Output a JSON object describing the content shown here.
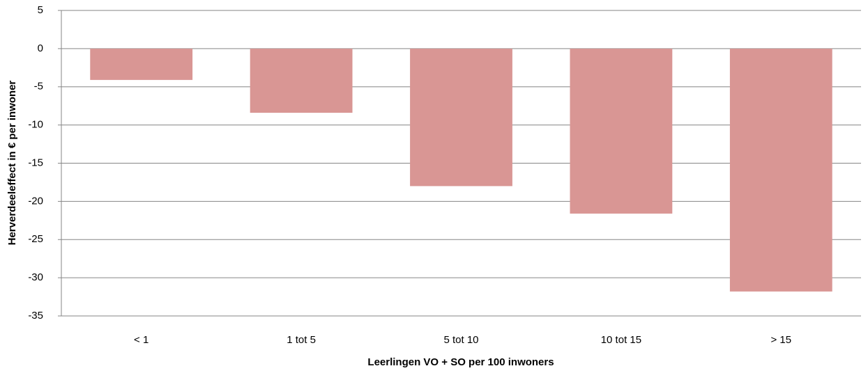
{
  "chart_data": {
    "type": "bar",
    "categories": [
      "< 1",
      "1 tot 5",
      "5 tot 10",
      "10 tot 15",
      "> 15"
    ],
    "values": [
      -4.1,
      -8.4,
      -18,
      -21.6,
      -31.8
    ],
    "color": "#d99694",
    "x_label": "Leerlingen VO + SO per 100 inwoners",
    "y_label": "Herverdeeleffect in € per inwoner",
    "ylim": [
      -35,
      5
    ],
    "yticks": [
      5,
      0,
      -5,
      -10,
      -15,
      -20,
      -25,
      -30,
      -35
    ],
    "grid": true
  }
}
